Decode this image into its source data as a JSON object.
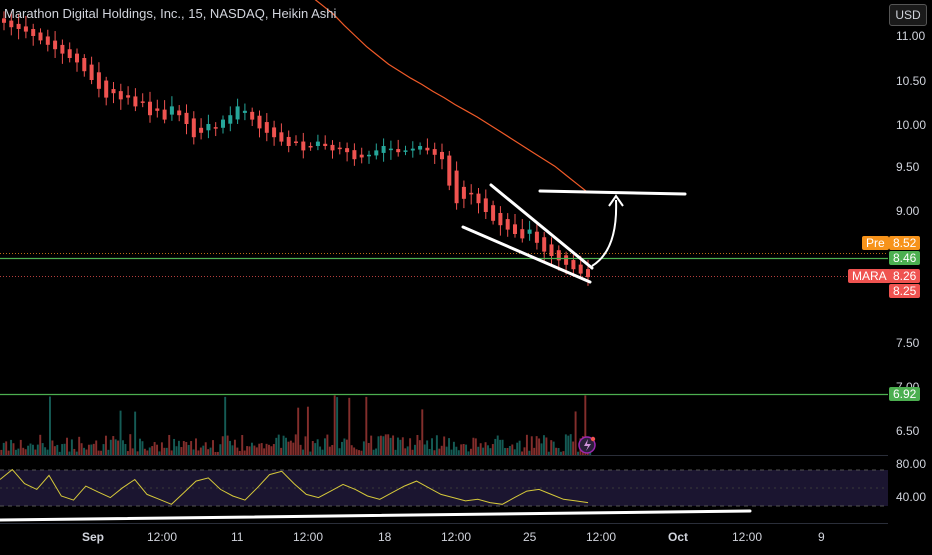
{
  "header": {
    "title": "Marathon Digital Holdings, Inc., 15, NASDAQ, Heikin Ashi",
    "currency_button": "USD"
  },
  "price_axis": {
    "ticks": [
      "11.00",
      "10.50",
      "10.00",
      "9.50",
      "9.00",
      "7.50",
      "7.00",
      "6.50"
    ]
  },
  "price_tags": {
    "pre_label": "Pre",
    "pre_value": "8.52",
    "level_upper": "8.46",
    "symbol_label": "MARA",
    "last_value": "8.26",
    "last_value_2": "8.25",
    "level_lower": "6.92"
  },
  "rsi_axis": {
    "ticks": [
      "80.00",
      "40.00"
    ]
  },
  "time_axis": {
    "ticks": [
      "Sep",
      "12:00",
      "11",
      "12:00",
      "18",
      "12:00",
      "25",
      "12:00",
      "Oct",
      "12:00",
      "9"
    ]
  },
  "colors": {
    "up": "#26a69a",
    "down": "#ef5350",
    "ma": "#f05a28",
    "level": "#4caf50",
    "pre": "#f7931a",
    "rsi": "#d6c93a"
  },
  "icons": {
    "alert": "lightning-alert-icon"
  },
  "chart_data": {
    "type": "candlestick",
    "symbol": "MARA",
    "price_ylim": [
      6.25,
      11.2
    ],
    "levels": [
      8.46,
      6.92
    ],
    "pre_price": 8.52,
    "last_price": 8.26,
    "rsi_ylim": [
      20,
      90
    ],
    "rsi_bands": [
      70,
      30
    ],
    "rsi_ticks": [
      80,
      40
    ],
    "x_ticks": [
      "Sep",
      "12:00",
      "11",
      "12:00",
      "18",
      "12:00",
      "25",
      "12:00",
      "Oct",
      "12:00",
      "9"
    ],
    "ohlc_close": [
      11.15,
      11.1,
      11.08,
      11.05,
      11.0,
      10.95,
      10.9,
      10.85,
      10.8,
      10.75,
      10.7,
      10.6,
      10.5,
      10.4,
      10.3,
      10.35,
      10.28,
      10.3,
      10.2,
      10.25,
      10.1,
      10.15,
      10.05,
      10.2,
      10.1,
      10.0,
      9.85,
      9.9,
      10.0,
      9.95,
      10.05,
      10.1,
      10.2,
      10.15,
      10.05,
      9.95,
      9.9,
      9.85,
      9.8,
      9.75,
      9.8,
      9.7,
      9.75,
      9.8,
      9.75,
      9.7,
      9.72,
      9.68,
      9.6,
      9.62,
      9.65,
      9.7,
      9.75,
      9.72,
      9.68,
      9.7,
      9.72,
      9.75,
      9.7,
      9.65,
      9.6,
      9.3,
      9.1,
      9.15,
      9.2,
      9.1,
      9.0,
      8.9,
      8.85,
      8.8,
      8.75,
      8.7,
      8.8,
      8.65,
      8.55,
      8.5,
      8.45,
      8.4,
      8.35,
      8.3,
      8.26
    ],
    "moving_average": [
      11.55,
      11.45,
      11.35,
      11.25,
      11.12,
      11.0,
      10.88,
      10.78,
      10.68,
      10.6,
      10.52,
      10.45,
      10.37,
      10.3,
      10.22,
      10.15,
      10.08,
      10.0,
      9.92,
      9.84,
      9.76,
      9.68,
      9.6,
      9.52,
      9.42,
      9.32,
      9.22
    ],
    "rsi": [
      60,
      72,
      55,
      48,
      65,
      40,
      35,
      52,
      45,
      38,
      50,
      60,
      42,
      36,
      30,
      44,
      58,
      62,
      48,
      40,
      35,
      50,
      66,
      70,
      55,
      42,
      38,
      46,
      54,
      48,
      40,
      36,
      44,
      52,
      58,
      50,
      42,
      38,
      34,
      36,
      32,
      30,
      38,
      46,
      48,
      42,
      36,
      34,
      32
    ]
  }
}
